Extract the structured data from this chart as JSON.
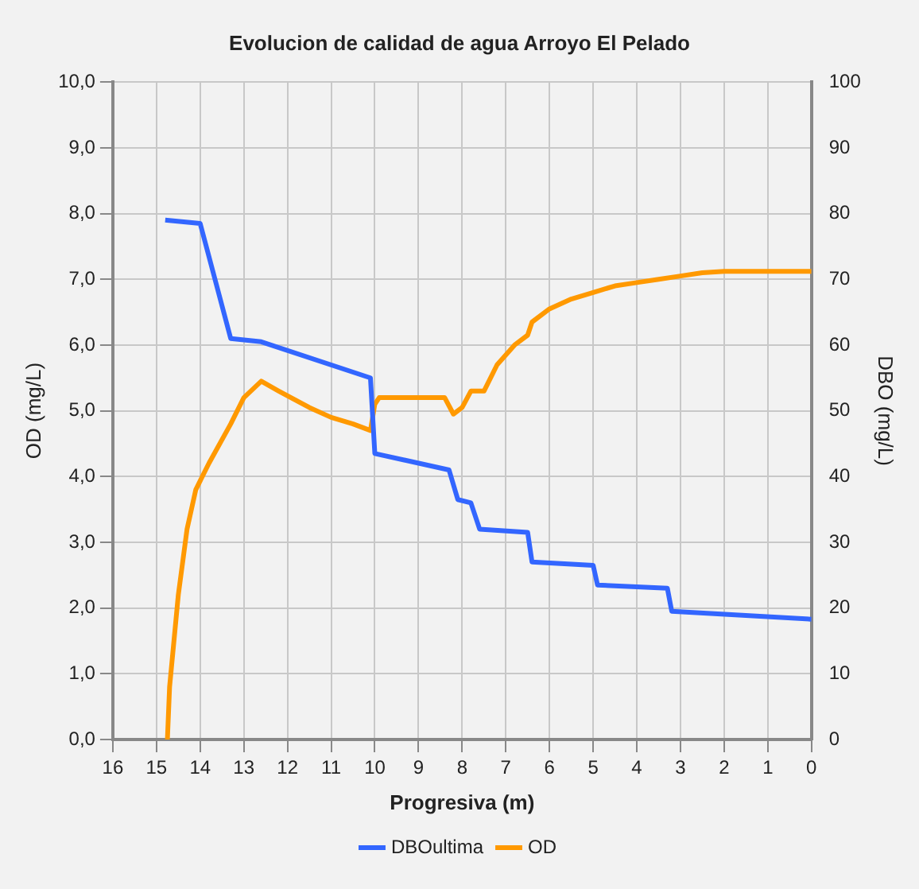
{
  "chart_data": {
    "type": "line",
    "title": "Evolucion de calidad de agua Arroyo El Pelado",
    "xlabel": "Progresiva (m)",
    "ylabel": "OD (mg/L)",
    "y2label": "DBO (mg/L)",
    "xlim": [
      16,
      0
    ],
    "xticks": [
      16,
      15,
      14,
      13,
      12,
      11,
      10,
      9,
      8,
      7,
      6,
      5,
      4,
      3,
      2,
      1,
      0
    ],
    "ylim": [
      0,
      10
    ],
    "yticks": [
      {
        "value": 0,
        "label": "0,0"
      },
      {
        "value": 1,
        "label": "1,0"
      },
      {
        "value": 2,
        "label": "2,0"
      },
      {
        "value": 3,
        "label": "3,0"
      },
      {
        "value": 4,
        "label": "4,0"
      },
      {
        "value": 5,
        "label": "5,0"
      },
      {
        "value": 6,
        "label": "6,0"
      },
      {
        "value": 7,
        "label": "7,0"
      },
      {
        "value": 8,
        "label": "8,0"
      },
      {
        "value": 9,
        "label": "9,0"
      },
      {
        "value": 10,
        "label": "10,0"
      }
    ],
    "y2lim": [
      0,
      100
    ],
    "y2ticks": [
      0,
      10,
      20,
      30,
      40,
      50,
      60,
      70,
      80,
      90,
      100
    ],
    "grid": true,
    "legend": "bottom",
    "marker": "none",
    "series": [
      {
        "name": "DBOultima",
        "color": "#3366ff",
        "axis": "y2",
        "x": [
          14.8,
          14.0,
          13.3,
          12.6,
          10.1,
          10.0,
          8.3,
          8.1,
          7.8,
          7.6,
          6.5,
          6.4,
          5.0,
          4.9,
          3.3,
          3.2,
          0
        ],
        "values": [
          79,
          78.5,
          61,
          60.5,
          55,
          43.5,
          41,
          36.5,
          36,
          32,
          31.5,
          27,
          26.5,
          23.5,
          23,
          19.5,
          18.3
        ]
      },
      {
        "name": "OD",
        "color": "#ff9900",
        "x": [
          14.75,
          14.7,
          14.5,
          14.3,
          14.1,
          13.8,
          13.3,
          13.0,
          12.6,
          12.2,
          11.5,
          11.0,
          10.5,
          10.1,
          10.0,
          9.9,
          8.4,
          8.2,
          8.0,
          7.8,
          7.5,
          7.2,
          6.8,
          6.5,
          6.4,
          6.0,
          5.5,
          5.0,
          4.5,
          4.0,
          3.5,
          3.0,
          2.5,
          2.0,
          0
        ],
        "values": [
          0,
          0.8,
          2.2,
          3.2,
          3.8,
          4.2,
          4.8,
          5.2,
          5.45,
          5.3,
          5.05,
          4.9,
          4.8,
          4.7,
          5.1,
          5.2,
          5.2,
          4.95,
          5.05,
          5.3,
          5.3,
          5.7,
          6.0,
          6.15,
          6.35,
          6.55,
          6.7,
          6.8,
          6.9,
          6.95,
          7.0,
          7.05,
          7.1,
          7.12,
          7.12
        ]
      }
    ]
  }
}
